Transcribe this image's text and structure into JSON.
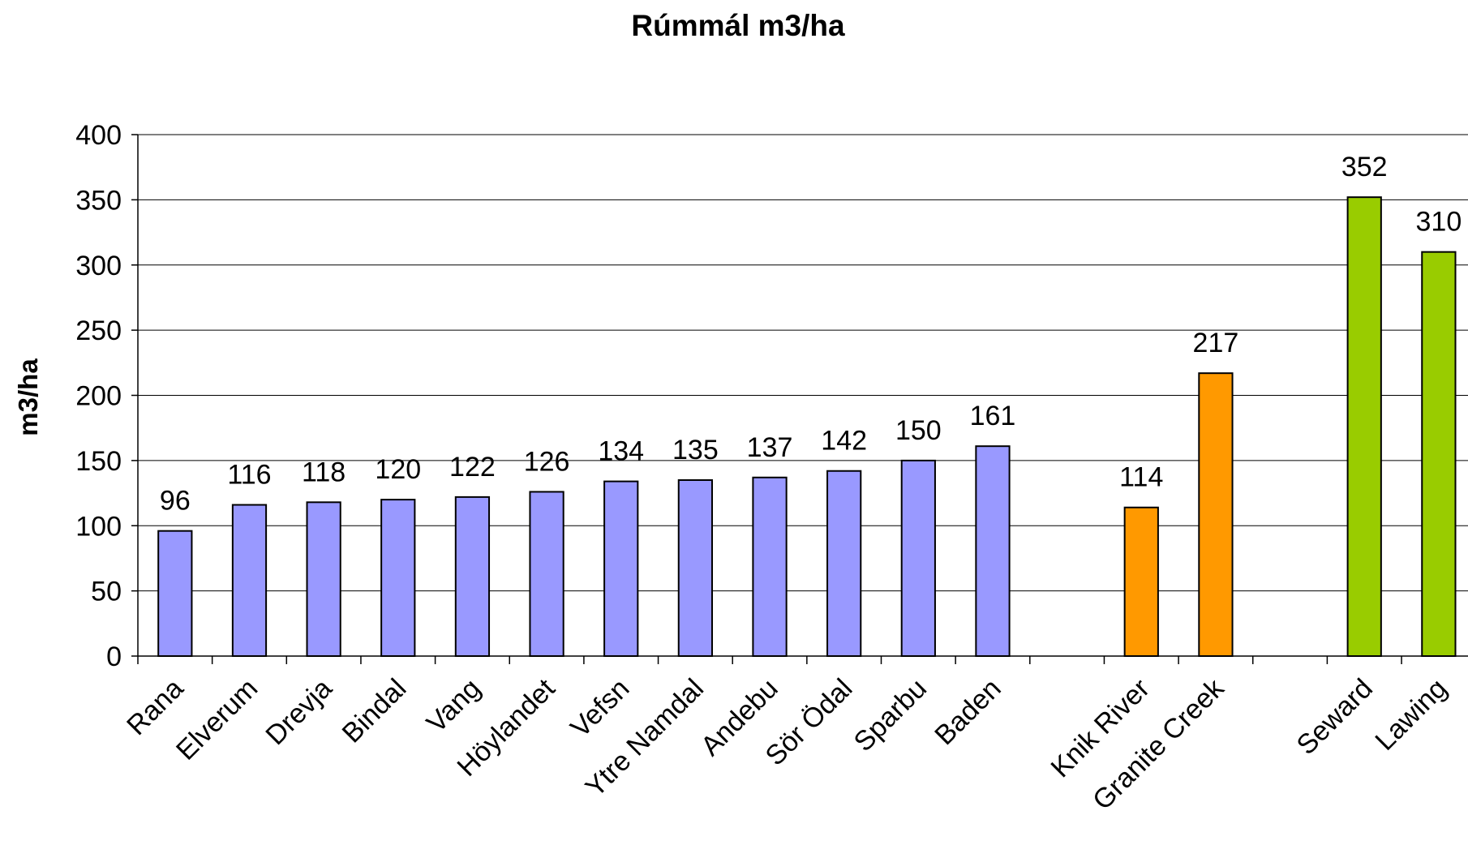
{
  "chart_data": {
    "type": "bar",
    "title": "Rúmmál m3/ha",
    "y_label": "m3/ha",
    "categories": [
      "Rana",
      "Elverum",
      "Drevja",
      "Bindal",
      "Vang",
      "Höylandet",
      "Vefsn",
      "Ytre Namdal",
      "Andebu",
      "Sör Ödal",
      "Sparbu",
      "Baden",
      null,
      "Knik River",
      "Granite Creek",
      null,
      "Seward",
      "Lawing"
    ],
    "values": [
      96,
      116,
      118,
      120,
      122,
      126,
      134,
      135,
      137,
      142,
      150,
      161,
      null,
      114,
      217,
      null,
      352,
      310
    ],
    "colors": [
      "#9999ff",
      "#9999ff",
      "#9999ff",
      "#9999ff",
      "#9999ff",
      "#9999ff",
      "#9999ff",
      "#9999ff",
      "#9999ff",
      "#9999ff",
      "#9999ff",
      "#9999ff",
      null,
      "#ff9900",
      "#ff9900",
      null,
      "#99cc00",
      "#99cc00"
    ],
    "ylim": [
      0,
      400
    ],
    "yticks": [
      0,
      50,
      100,
      150,
      200,
      250,
      300,
      350,
      400
    ],
    "grid": true
  }
}
